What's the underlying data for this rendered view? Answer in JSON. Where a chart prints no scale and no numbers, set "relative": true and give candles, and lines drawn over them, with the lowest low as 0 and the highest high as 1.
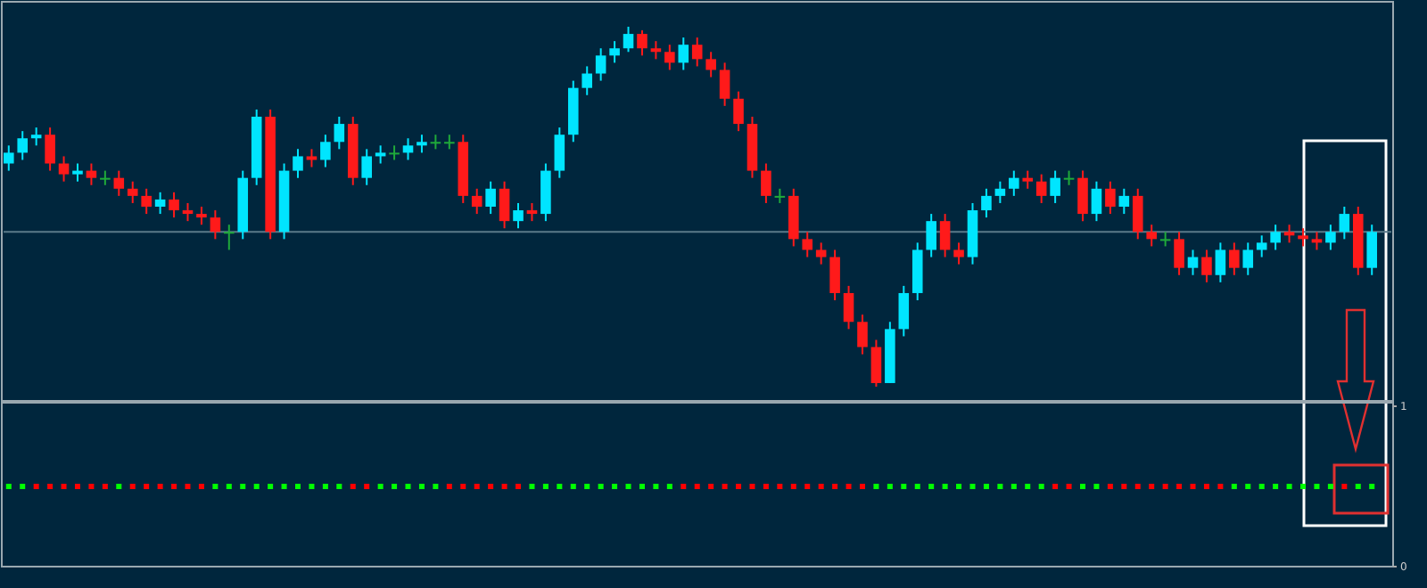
{
  "chart_data": [
    {
      "type": "candlestick",
      "relative": true,
      "categories": [
        null,
        null,
        null,
        null,
        null,
        null,
        null,
        null,
        null,
        null,
        null,
        null,
        null,
        null,
        null,
        null,
        null,
        null,
        null,
        null,
        null,
        null,
        null,
        null,
        null,
        null,
        null,
        null,
        null,
        null,
        null,
        null,
        null,
        null,
        null,
        null,
        null,
        null,
        null,
        null,
        null,
        null,
        null,
        null,
        null,
        null,
        null,
        null,
        null,
        null,
        null,
        null,
        null,
        null,
        null,
        null,
        null,
        null,
        null,
        null,
        null,
        null,
        null,
        null,
        null,
        null,
        null,
        null,
        null,
        null,
        null,
        null,
        null,
        null,
        null,
        null,
        null,
        null,
        null,
        null,
        null,
        null,
        null,
        null,
        null,
        null,
        null,
        null,
        null,
        null,
        null,
        null,
        null,
        null,
        null,
        null,
        null,
        null,
        null,
        null
      ],
      "ohlc": [
        [
          0.62,
          0.67,
          0.6,
          0.65
        ],
        [
          0.65,
          0.71,
          0.63,
          0.69
        ],
        [
          0.69,
          0.72,
          0.67,
          0.7
        ],
        [
          0.7,
          0.72,
          0.6,
          0.62
        ],
        [
          0.62,
          0.64,
          0.57,
          0.59
        ],
        [
          0.59,
          0.62,
          0.57,
          0.6
        ],
        [
          0.6,
          0.62,
          0.56,
          0.58
        ],
        [
          0.58,
          0.6,
          0.56,
          0.58
        ],
        [
          0.58,
          0.6,
          0.53,
          0.55
        ],
        [
          0.55,
          0.57,
          0.51,
          0.53
        ],
        [
          0.53,
          0.55,
          0.48,
          0.5
        ],
        [
          0.5,
          0.54,
          0.48,
          0.52
        ],
        [
          0.52,
          0.54,
          0.47,
          0.49
        ],
        [
          0.49,
          0.51,
          0.46,
          0.48
        ],
        [
          0.48,
          0.5,
          0.45,
          0.47
        ],
        [
          0.47,
          0.49,
          0.41,
          0.43
        ],
        [
          0.43,
          0.45,
          0.38,
          0.43
        ],
        [
          0.43,
          0.6,
          0.41,
          0.58
        ],
        [
          0.58,
          0.77,
          0.56,
          0.75
        ],
        [
          0.75,
          0.77,
          0.41,
          0.43
        ],
        [
          0.43,
          0.62,
          0.41,
          0.6
        ],
        [
          0.6,
          0.66,
          0.58,
          0.64
        ],
        [
          0.64,
          0.66,
          0.61,
          0.63
        ],
        [
          0.63,
          0.7,
          0.61,
          0.68
        ],
        [
          0.68,
          0.75,
          0.66,
          0.73
        ],
        [
          0.73,
          0.75,
          0.56,
          0.58
        ],
        [
          0.58,
          0.66,
          0.56,
          0.64
        ],
        [
          0.64,
          0.67,
          0.62,
          0.65
        ],
        [
          0.65,
          0.67,
          0.63,
          0.65
        ],
        [
          0.65,
          0.69,
          0.63,
          0.67
        ],
        [
          0.67,
          0.7,
          0.65,
          0.68
        ],
        [
          0.68,
          0.7,
          0.66,
          0.68
        ],
        [
          0.68,
          0.7,
          0.66,
          0.68
        ],
        [
          0.68,
          0.7,
          0.51,
          0.53
        ],
        [
          0.53,
          0.55,
          0.48,
          0.5
        ],
        [
          0.5,
          0.57,
          0.48,
          0.55
        ],
        [
          0.55,
          0.57,
          0.44,
          0.46
        ],
        [
          0.46,
          0.51,
          0.44,
          0.49
        ],
        [
          0.49,
          0.51,
          0.46,
          0.48
        ],
        [
          0.48,
          0.62,
          0.46,
          0.6
        ],
        [
          0.6,
          0.72,
          0.58,
          0.7
        ],
        [
          0.7,
          0.85,
          0.68,
          0.83
        ],
        [
          0.83,
          0.89,
          0.81,
          0.87
        ],
        [
          0.87,
          0.94,
          0.85,
          0.92
        ],
        [
          0.92,
          0.96,
          0.9,
          0.94
        ],
        [
          0.94,
          1.0,
          0.93,
          0.98
        ],
        [
          0.98,
          0.99,
          0.92,
          0.94
        ],
        [
          0.94,
          0.96,
          0.91,
          0.93
        ],
        [
          0.93,
          0.95,
          0.88,
          0.9
        ],
        [
          0.9,
          0.97,
          0.88,
          0.95
        ],
        [
          0.95,
          0.97,
          0.89,
          0.91
        ],
        [
          0.91,
          0.93,
          0.86,
          0.88
        ],
        [
          0.88,
          0.9,
          0.78,
          0.8
        ],
        [
          0.8,
          0.82,
          0.71,
          0.73
        ],
        [
          0.73,
          0.75,
          0.58,
          0.6
        ],
        [
          0.6,
          0.62,
          0.51,
          0.53
        ],
        [
          0.53,
          0.55,
          0.51,
          0.53
        ],
        [
          0.53,
          0.55,
          0.39,
          0.41
        ],
        [
          0.41,
          0.43,
          0.36,
          0.38
        ],
        [
          0.38,
          0.4,
          0.34,
          0.36
        ],
        [
          0.36,
          0.38,
          0.24,
          0.26
        ],
        [
          0.26,
          0.28,
          0.16,
          0.18
        ],
        [
          0.18,
          0.2,
          0.09,
          0.11
        ],
        [
          0.11,
          0.13,
          0.0,
          0.01
        ],
        [
          0.01,
          0.18,
          0.01,
          0.16
        ],
        [
          0.16,
          0.28,
          0.14,
          0.26
        ],
        [
          0.26,
          0.4,
          0.24,
          0.38
        ],
        [
          0.38,
          0.48,
          0.36,
          0.46
        ],
        [
          0.46,
          0.48,
          0.36,
          0.38
        ],
        [
          0.38,
          0.4,
          0.34,
          0.36
        ],
        [
          0.36,
          0.51,
          0.34,
          0.49
        ],
        [
          0.49,
          0.55,
          0.47,
          0.53
        ],
        [
          0.53,
          0.57,
          0.51,
          0.55
        ],
        [
          0.55,
          0.6,
          0.53,
          0.58
        ],
        [
          0.58,
          0.6,
          0.55,
          0.57
        ],
        [
          0.57,
          0.59,
          0.51,
          0.53
        ],
        [
          0.53,
          0.6,
          0.51,
          0.58
        ],
        [
          0.58,
          0.6,
          0.56,
          0.58
        ],
        [
          0.58,
          0.6,
          0.46,
          0.48
        ],
        [
          0.48,
          0.57,
          0.46,
          0.55
        ],
        [
          0.55,
          0.57,
          0.48,
          0.5
        ],
        [
          0.5,
          0.55,
          0.48,
          0.53
        ],
        [
          0.53,
          0.55,
          0.41,
          0.43
        ],
        [
          0.43,
          0.45,
          0.39,
          0.41
        ],
        [
          0.41,
          0.43,
          0.39,
          0.41
        ],
        [
          0.41,
          0.43,
          0.31,
          0.33
        ],
        [
          0.33,
          0.38,
          0.31,
          0.36
        ],
        [
          0.36,
          0.38,
          0.29,
          0.31
        ],
        [
          0.31,
          0.4,
          0.29,
          0.38
        ],
        [
          0.38,
          0.4,
          0.31,
          0.33
        ],
        [
          0.33,
          0.4,
          0.31,
          0.38
        ],
        [
          0.38,
          0.42,
          0.36,
          0.4
        ],
        [
          0.4,
          0.45,
          0.38,
          0.43
        ],
        [
          0.43,
          0.45,
          0.4,
          0.42
        ],
        [
          0.42,
          0.44,
          0.39,
          0.41
        ],
        [
          0.41,
          0.43,
          0.38,
          0.4
        ],
        [
          0.4,
          0.45,
          0.38,
          0.43
        ],
        [
          0.43,
          0.5,
          0.41,
          0.48
        ],
        [
          0.48,
          0.5,
          0.31,
          0.33
        ],
        [
          0.33,
          0.45,
          0.31,
          0.43
        ]
      ],
      "ref_lines": [
        {
          "axis": "y",
          "value": 0.43,
          "color": "#5a7a8a"
        }
      ]
    },
    {
      "type": "scatter",
      "marker": "square",
      "ylim": [
        0,
        1
      ],
      "yticks": [
        0,
        1
      ],
      "categories": [
        null,
        null,
        null,
        null,
        null,
        null,
        null,
        null,
        null,
        null,
        null,
        null,
        null,
        null,
        null,
        null,
        null,
        null,
        null,
        null,
        null,
        null,
        null,
        null,
        null,
        null,
        null,
        null,
        null,
        null,
        null,
        null,
        null,
        null,
        null,
        null,
        null,
        null,
        null,
        null,
        null,
        null,
        null,
        null,
        null,
        null,
        null,
        null,
        null,
        null,
        null,
        null,
        null,
        null,
        null,
        null,
        null,
        null,
        null,
        null,
        null,
        null,
        null,
        null,
        null,
        null,
        null,
        null,
        null,
        null,
        null,
        null,
        null,
        null,
        null,
        null,
        null,
        null,
        null,
        null,
        null,
        null,
        null,
        null,
        null,
        null,
        null,
        null,
        null,
        null,
        null,
        null,
        null,
        null,
        null,
        null,
        null,
        null,
        null,
        null
      ],
      "values": [
        0.5,
        0.5,
        0.5,
        0.5,
        0.5,
        0.5,
        0.5,
        0.5,
        0.5,
        0.5,
        0.5,
        0.5,
        0.5,
        0.5,
        0.5,
        0.5,
        0.5,
        0.5,
        0.5,
        0.5,
        0.5,
        0.5,
        0.5,
        0.5,
        0.5,
        0.5,
        0.5,
        0.5,
        0.5,
        0.5,
        0.5,
        0.5,
        0.5,
        0.5,
        0.5,
        0.5,
        0.5,
        0.5,
        0.5,
        0.5,
        0.5,
        0.5,
        0.5,
        0.5,
        0.5,
        0.5,
        0.5,
        0.5,
        0.5,
        0.5,
        0.5,
        0.5,
        0.5,
        0.5,
        0.5,
        0.5,
        0.5,
        0.5,
        0.5,
        0.5,
        0.5,
        0.5,
        0.5,
        0.5,
        0.5,
        0.5,
        0.5,
        0.5,
        0.5,
        0.5,
        0.5,
        0.5,
        0.5,
        0.5,
        0.5,
        0.5,
        0.5,
        0.5,
        0.5,
        0.5,
        0.5,
        0.5,
        0.5,
        0.5,
        0.5,
        0.5,
        0.5,
        0.5,
        0.5,
        0.5,
        0.5,
        0.5,
        0.5,
        0.5,
        0.5,
        0.5,
        0.5,
        0.5,
        0.5,
        0.5
      ],
      "colors": [
        "#00ff00",
        "#00ff00",
        "#ff0000",
        "#ff0000",
        "#ff0000",
        "#ff0000",
        "#ff0000",
        "#ff0000",
        "#00ff00",
        "#ff0000",
        "#ff0000",
        "#ff0000",
        "#ff0000",
        "#ff0000",
        "#ff0000",
        "#00ff00",
        "#00ff00",
        "#00ff00",
        "#00ff00",
        "#00ff00",
        "#00ff00",
        "#00ff00",
        "#00ff00",
        "#00ff00",
        "#00ff00",
        "#ff0000",
        "#ff0000",
        "#00ff00",
        "#00ff00",
        "#00ff00",
        "#00ff00",
        "#00ff00",
        "#ff0000",
        "#ff0000",
        "#ff0000",
        "#ff0000",
        "#ff0000",
        "#ff0000",
        "#00ff00",
        "#00ff00",
        "#00ff00",
        "#00ff00",
        "#00ff00",
        "#00ff00",
        "#00ff00",
        "#00ff00",
        "#00ff00",
        "#00ff00",
        "#00ff00",
        "#ff0000",
        "#ff0000",
        "#ff0000",
        "#ff0000",
        "#ff0000",
        "#ff0000",
        "#ff0000",
        "#ff0000",
        "#ff0000",
        "#ff0000",
        "#ff0000",
        "#ff0000",
        "#ff0000",
        "#ff0000",
        "#00ff00",
        "#00ff00",
        "#00ff00",
        "#00ff00",
        "#00ff00",
        "#00ff00",
        "#00ff00",
        "#00ff00",
        "#00ff00",
        "#00ff00",
        "#00ff00",
        "#00ff00",
        "#00ff00",
        "#ff0000",
        "#ff0000",
        "#00ff00",
        "#00ff00",
        "#ff0000",
        "#ff0000",
        "#ff0000",
        "#ff0000",
        "#ff0000",
        "#ff0000",
        "#ff0000",
        "#ff0000",
        "#ff0000",
        "#00ff00",
        "#00ff00",
        "#00ff00",
        "#00ff00",
        "#00ff00",
        "#00ff00",
        "#00ff00",
        "#00ff00",
        "#ff0000",
        "#00ff00",
        "#00ff00"
      ]
    }
  ]
}
